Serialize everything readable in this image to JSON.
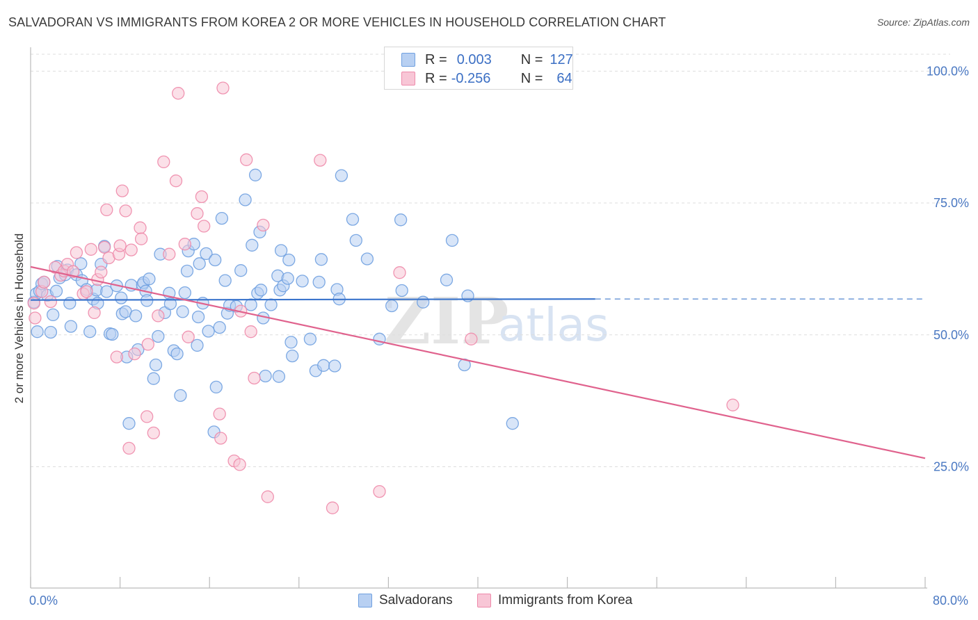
{
  "title": "SALVADORAN VS IMMIGRANTS FROM KOREA 2 OR MORE VEHICLES IN HOUSEHOLD CORRELATION CHART",
  "source": "Source: ZipAtlas.com",
  "watermark": {
    "zip": "ZIP",
    "atlas": "atlas"
  },
  "legend_top": {
    "rows": [
      {
        "r_label": "R =",
        "r_value": "0.003",
        "n_label": "N =",
        "n_value": "127",
        "color": "#6fa0e0",
        "fill": "#b8d0f2"
      },
      {
        "r_label": "R =",
        "r_value": "-0.256",
        "n_label": "N =",
        "n_value": "64",
        "color": "#ee8aaa",
        "fill": "#f8c6d6"
      }
    ]
  },
  "legend_bottom": [
    {
      "label": "Salvadorans",
      "color": "#6fa0e0",
      "fill": "#b8d0f2"
    },
    {
      "label": "Immigrants from Korea",
      "color": "#ee8aaa",
      "fill": "#f8c6d6"
    }
  ],
  "chart_data": {
    "type": "scatter",
    "title": "SALVADORAN VS IMMIGRANTS FROM KOREA 2 OR MORE VEHICLES IN HOUSEHOLD CORRELATION CHART",
    "xlabel": "",
    "ylabel": "2 or more Vehicles in Household",
    "xlim": [
      0,
      80
    ],
    "ylim": [
      2.0,
      104.0
    ],
    "x_tick_labels": [
      {
        "value": 0,
        "label": "0.0%"
      },
      {
        "value": 80,
        "label": "80.0%"
      }
    ],
    "y_tick_labels": [
      {
        "value": 25,
        "label": "25.0%"
      },
      {
        "value": 50,
        "label": "50.0%"
      },
      {
        "value": 75,
        "label": "75.0%"
      },
      {
        "value": 100,
        "label": "100.0%"
      }
    ],
    "grid": "horizontal dashed",
    "legend_position": "top-center",
    "series": [
      {
        "name": "Salvadorans",
        "color": "#6fa0e0",
        "trend": {
          "x0": 0,
          "y0": 56.6,
          "x1": 50.5,
          "y1": 56.8,
          "dashed_to_x": 80,
          "dashed_y": 56.8
        },
        "points": [
          [
            0.3,
            56.2
          ],
          [
            0.5,
            57.8
          ],
          [
            0.6,
            50.6
          ],
          [
            0.8,
            58.3
          ],
          [
            1.0,
            59.7
          ],
          [
            1.2,
            60.0
          ],
          [
            1.5,
            57.5
          ],
          [
            1.8,
            50.5
          ],
          [
            2.0,
            53.8
          ],
          [
            2.3,
            58.3
          ],
          [
            2.4,
            63.0
          ],
          [
            2.6,
            60.8
          ],
          [
            3.1,
            61.4
          ],
          [
            3.3,
            62.3
          ],
          [
            3.5,
            56.0
          ],
          [
            3.6,
            51.6
          ],
          [
            4.1,
            61.4
          ],
          [
            4.5,
            63.5
          ],
          [
            4.6,
            60.3
          ],
          [
            5.0,
            58.6
          ],
          [
            5.3,
            50.6
          ],
          [
            5.6,
            56.8
          ],
          [
            5.9,
            58.5
          ],
          [
            6.0,
            56.0
          ],
          [
            6.3,
            63.4
          ],
          [
            6.6,
            66.8
          ],
          [
            6.8,
            58.2
          ],
          [
            7.1,
            50.2
          ],
          [
            7.3,
            50.1
          ],
          [
            7.7,
            59.3
          ],
          [
            8.1,
            57.0
          ],
          [
            8.2,
            54.0
          ],
          [
            8.5,
            54.4
          ],
          [
            8.6,
            45.8
          ],
          [
            8.8,
            33.2
          ],
          [
            9.0,
            59.4
          ],
          [
            9.4,
            53.6
          ],
          [
            9.6,
            47.2
          ],
          [
            10.0,
            59.5
          ],
          [
            10.1,
            59.9
          ],
          [
            10.3,
            58.3
          ],
          [
            10.4,
            56.5
          ],
          [
            10.6,
            60.6
          ],
          [
            11.0,
            41.7
          ],
          [
            11.2,
            44.3
          ],
          [
            11.4,
            49.7
          ],
          [
            11.6,
            65.3
          ],
          [
            12.0,
            54.2
          ],
          [
            12.4,
            57.9
          ],
          [
            12.5,
            55.9
          ],
          [
            12.8,
            47.0
          ],
          [
            13.1,
            46.4
          ],
          [
            13.4,
            38.5
          ],
          [
            13.6,
            54.4
          ],
          [
            13.8,
            58.0
          ],
          [
            14.0,
            62.1
          ],
          [
            14.1,
            65.9
          ],
          [
            14.6,
            67.2
          ],
          [
            14.9,
            48.0
          ],
          [
            15.0,
            53.4
          ],
          [
            15.1,
            63.5
          ],
          [
            15.4,
            56.0
          ],
          [
            15.7,
            65.4
          ],
          [
            15.9,
            50.7
          ],
          [
            16.4,
            31.6
          ],
          [
            16.5,
            64.2
          ],
          [
            16.6,
            40.1
          ],
          [
            16.9,
            51.4
          ],
          [
            17.1,
            72.1
          ],
          [
            17.4,
            60.3
          ],
          [
            17.6,
            54.1
          ],
          [
            17.8,
            55.6
          ],
          [
            18.4,
            55.4
          ],
          [
            18.8,
            62.2
          ],
          [
            19.2,
            75.6
          ],
          [
            19.7,
            55.7
          ],
          [
            19.8,
            67.0
          ],
          [
            20.1,
            80.3
          ],
          [
            20.3,
            57.9
          ],
          [
            20.5,
            69.5
          ],
          [
            20.6,
            58.5
          ],
          [
            20.8,
            53.2
          ],
          [
            21.0,
            42.2
          ],
          [
            21.5,
            55.7
          ],
          [
            22.1,
            61.2
          ],
          [
            22.2,
            42.1
          ],
          [
            22.3,
            58.5
          ],
          [
            22.4,
            66.0
          ],
          [
            22.6,
            59.3
          ],
          [
            23.0,
            60.7
          ],
          [
            23.1,
            64.2
          ],
          [
            23.3,
            48.6
          ],
          [
            23.4,
            46.0
          ],
          [
            24.3,
            60.2
          ],
          [
            25.0,
            49.2
          ],
          [
            25.5,
            43.2
          ],
          [
            25.8,
            60.0
          ],
          [
            26.0,
            64.3
          ],
          [
            26.2,
            44.2
          ],
          [
            27.2,
            44.1
          ],
          [
            27.4,
            58.6
          ],
          [
            27.6,
            56.8
          ],
          [
            27.8,
            80.2
          ],
          [
            28.8,
            71.9
          ],
          [
            29.1,
            67.9
          ],
          [
            30.1,
            64.4
          ],
          [
            31.2,
            49.2
          ],
          [
            32.3,
            55.5
          ],
          [
            33.1,
            71.8
          ],
          [
            33.2,
            58.4
          ],
          [
            35.1,
            56.2
          ],
          [
            37.2,
            60.4
          ],
          [
            37.7,
            67.9
          ],
          [
            38.8,
            44.3
          ],
          [
            39.1,
            57.4
          ],
          [
            43.1,
            33.2
          ]
        ]
      },
      {
        "name": "Immigrants from Korea",
        "color": "#ee8aaa",
        "trend": {
          "x0": 0,
          "y0": 62.9,
          "x1": 80,
          "y1": 26.6
        },
        "points": [
          [
            0.3,
            56.0
          ],
          [
            0.4,
            53.2
          ],
          [
            1.0,
            58.2
          ],
          [
            1.2,
            60.0
          ],
          [
            1.8,
            56.3
          ],
          [
            2.2,
            62.8
          ],
          [
            2.7,
            61.3
          ],
          [
            3.0,
            62.1
          ],
          [
            3.3,
            63.4
          ],
          [
            3.8,
            62.0
          ],
          [
            4.1,
            65.6
          ],
          [
            4.7,
            57.8
          ],
          [
            5.0,
            58.2
          ],
          [
            5.4,
            66.2
          ],
          [
            5.7,
            54.2
          ],
          [
            6.0,
            60.5
          ],
          [
            6.3,
            61.9
          ],
          [
            6.6,
            66.6
          ],
          [
            6.8,
            73.7
          ],
          [
            7.0,
            64.6
          ],
          [
            7.7,
            45.8
          ],
          [
            7.9,
            65.3
          ],
          [
            8.0,
            66.9
          ],
          [
            8.2,
            77.3
          ],
          [
            8.5,
            73.5
          ],
          [
            8.8,
            28.5
          ],
          [
            9.0,
            66.1
          ],
          [
            9.3,
            46.4
          ],
          [
            9.8,
            70.3
          ],
          [
            9.9,
            68.2
          ],
          [
            10.4,
            34.5
          ],
          [
            10.5,
            48.2
          ],
          [
            11.0,
            31.4
          ],
          [
            11.4,
            53.6
          ],
          [
            11.9,
            82.8
          ],
          [
            12.4,
            65.3
          ],
          [
            13.0,
            79.2
          ],
          [
            13.2,
            95.8
          ],
          [
            13.8,
            67.2
          ],
          [
            14.1,
            49.6
          ],
          [
            14.9,
            73.0
          ],
          [
            15.3,
            76.2
          ],
          [
            15.5,
            70.6
          ],
          [
            16.9,
            35.0
          ],
          [
            17.0,
            30.4
          ],
          [
            17.2,
            96.8
          ],
          [
            18.2,
            26.1
          ],
          [
            18.7,
            25.4
          ],
          [
            18.8,
            54.5
          ],
          [
            19.3,
            83.2
          ],
          [
            19.7,
            50.6
          ],
          [
            20.0,
            41.8
          ],
          [
            20.8,
            70.8
          ],
          [
            21.2,
            19.3
          ],
          [
            25.9,
            83.1
          ],
          [
            27.0,
            17.2
          ],
          [
            31.2,
            20.3
          ],
          [
            33.0,
            61.8
          ],
          [
            39.4,
            49.2
          ],
          [
            62.8,
            36.7
          ]
        ]
      }
    ]
  }
}
